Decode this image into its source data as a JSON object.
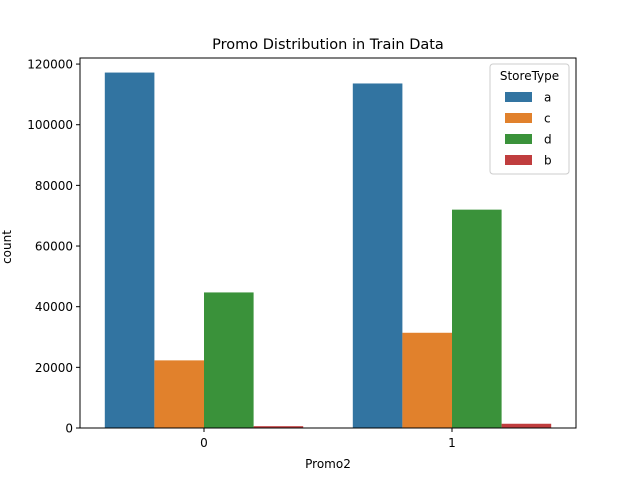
{
  "chart_data": {
    "type": "bar",
    "title": "Promo Distribution in Train Data",
    "xlabel": "Promo2",
    "ylabel": "count",
    "categories": [
      "0",
      "1"
    ],
    "ylim": [
      0,
      120000
    ],
    "yticks": [
      0,
      20000,
      40000,
      60000,
      80000,
      100000,
      120000
    ],
    "ytick_labels": [
      "0",
      "20000",
      "40000",
      "60000",
      "80000",
      "100000",
      "120000"
    ],
    "grid": false,
    "legend": {
      "title": "StoreType",
      "position": "top-right"
    },
    "series": [
      {
        "name": "a",
        "color": "#3274a1",
        "values": [
          117200,
          113600
        ]
      },
      {
        "name": "c",
        "color": "#e1812c",
        "values": [
          22300,
          31400
        ]
      },
      {
        "name": "d",
        "color": "#3a923a",
        "values": [
          44700,
          72000
        ]
      },
      {
        "name": "b",
        "color": "#c03d3e",
        "values": [
          600,
          1400
        ]
      }
    ]
  }
}
